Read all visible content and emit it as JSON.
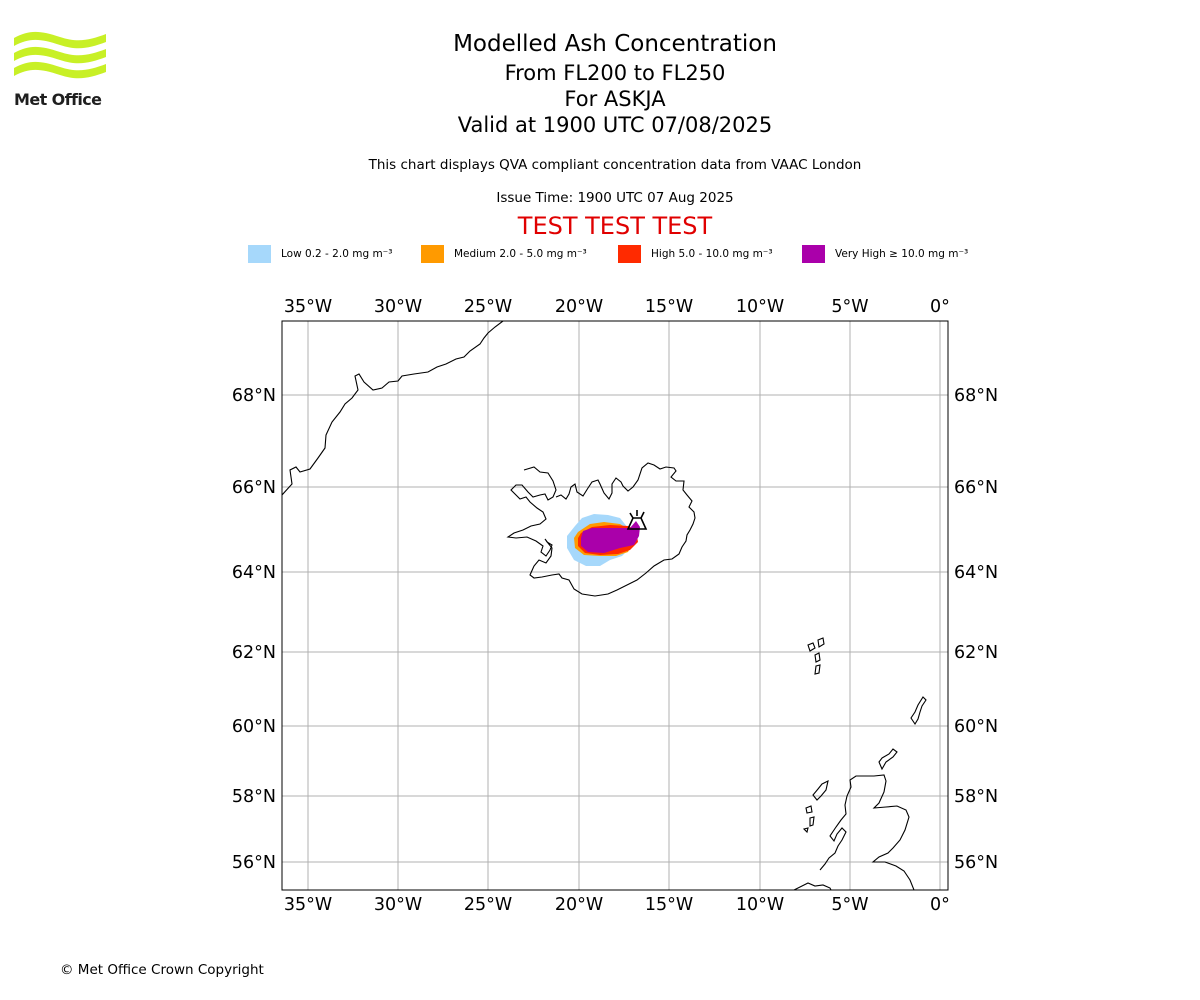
{
  "branding": {
    "logo_text": "Met Office",
    "logo_color": "#c8f026"
  },
  "header": {
    "title": "Modelled Ash Concentration",
    "level_range": "From FL200 to FL250",
    "volcano": "For ASKJA",
    "valid_time": "Valid at 1900 UTC 07/08/2025",
    "description": "This chart displays QVA compliant concentration data from VAAC London",
    "issue_time": "Issue Time: 1900 UTC 07 Aug 2025",
    "test_banner": "TEST TEST TEST"
  },
  "legend": [
    {
      "label": "Low 0.2 - 2.0 mg m⁻³",
      "color": "#a6d8fb"
    },
    {
      "label": "Medium 2.0 - 5.0 mg m⁻³",
      "color": "#ff9a00"
    },
    {
      "label": "High 5.0 - 10.0 mg m⁻³",
      "color": "#ff2a00"
    },
    {
      "label": "Very High  ≥  10.0 mg m⁻³",
      "color": "#aa00aa"
    }
  ],
  "map": {
    "longitude_labels": [
      "35°W",
      "30°W",
      "25°W",
      "20°W",
      "15°W",
      "10°W",
      "5°W",
      "0°"
    ],
    "latitude_labels": [
      "68°N",
      "66°N",
      "64°N",
      "62°N",
      "60°N",
      "58°N",
      "56°N"
    ],
    "volcano_symbol": "volcano-icon",
    "gridline_color": "#b0b0b0"
  },
  "footer": {
    "copyright": "© Met Office Crown Copyright"
  }
}
